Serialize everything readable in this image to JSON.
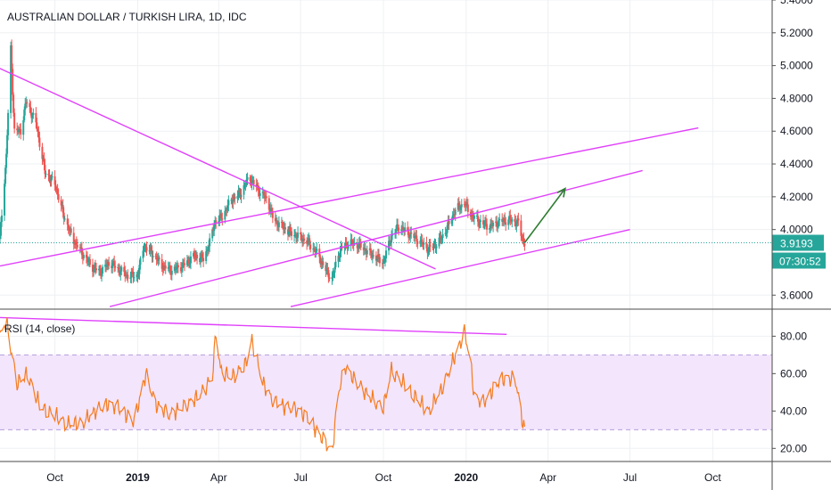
{
  "chart_data": {
    "type": "candlestick",
    "title": "AUSTRALIAN DOLLAR / TURKISH LIRA, 1D, IDC",
    "price_axis": {
      "ylim": [
        3.52,
        5.4
      ],
      "ticks": [
        "5.4000",
        "5.2000",
        "5.0000",
        "4.8000",
        "4.6000",
        "4.4000",
        "4.2000",
        "4.0000",
        "3.6000"
      ]
    },
    "last_price": {
      "label": "3.9193",
      "value": 3.9193,
      "color": "#26a69a"
    },
    "countdown": {
      "label": "07:30:52",
      "color": "#26a69a"
    },
    "x_axis": {
      "start": "2018-08-01",
      "end": "2020-12-06",
      "ticks": [
        {
          "label": "Oct",
          "date": "2018-10-01",
          "bold": false
        },
        {
          "label": "2019",
          "date": "2019-01-01",
          "bold": true
        },
        {
          "label": "Apr",
          "date": "2019-04-01",
          "bold": false
        },
        {
          "label": "Jul",
          "date": "2019-07-01",
          "bold": false
        },
        {
          "label": "Oct",
          "date": "2019-10-01",
          "bold": false
        },
        {
          "label": "2020",
          "date": "2020-01-01",
          "bold": true
        },
        {
          "label": "Apr",
          "date": "2020-04-01",
          "bold": false
        },
        {
          "label": "Jul",
          "date": "2020-07-01",
          "bold": false
        },
        {
          "label": "Oct",
          "date": "2020-10-01",
          "bold": false
        }
      ]
    },
    "price_anchors": [
      [
        "2018-08-01",
        3.95
      ],
      [
        "2018-08-08",
        4.45
      ],
      [
        "2018-08-13",
        5.1
      ],
      [
        "2018-08-17",
        4.6
      ],
      [
        "2018-08-24",
        4.6
      ],
      [
        "2018-08-30",
        4.78
      ],
      [
        "2018-09-10",
        4.65
      ],
      [
        "2018-09-20",
        4.35
      ],
      [
        "2018-10-01",
        4.28
      ],
      [
        "2018-10-10",
        4.1
      ],
      [
        "2018-10-20",
        3.95
      ],
      [
        "2018-11-01",
        3.85
      ],
      [
        "2018-11-10",
        3.78
      ],
      [
        "2018-11-20",
        3.74
      ],
      [
        "2018-12-01",
        3.8
      ],
      [
        "2018-12-10",
        3.76
      ],
      [
        "2018-12-20",
        3.72
      ],
      [
        "2019-01-01",
        3.72
      ],
      [
        "2019-01-08",
        3.9
      ],
      [
        "2019-01-18",
        3.85
      ],
      [
        "2019-01-28",
        3.78
      ],
      [
        "2019-02-08",
        3.75
      ],
      [
        "2019-02-20",
        3.78
      ],
      [
        "2019-03-05",
        3.84
      ],
      [
        "2019-03-15",
        3.82
      ],
      [
        "2019-03-22",
        3.92
      ],
      [
        "2019-03-28",
        4.05
      ],
      [
        "2019-04-05",
        4.08
      ],
      [
        "2019-04-15",
        4.18
      ],
      [
        "2019-04-25",
        4.22
      ],
      [
        "2019-05-05",
        4.32
      ],
      [
        "2019-05-10",
        4.28
      ],
      [
        "2019-05-18",
        4.22
      ],
      [
        "2019-05-25",
        4.18
      ],
      [
        "2019-06-01",
        4.06
      ],
      [
        "2019-06-10",
        4.02
      ],
      [
        "2019-06-20",
        3.98
      ],
      [
        "2019-07-01",
        3.95
      ],
      [
        "2019-07-10",
        3.92
      ],
      [
        "2019-07-20",
        3.85
      ],
      [
        "2019-07-28",
        3.76
      ],
      [
        "2019-08-05",
        3.7
      ],
      [
        "2019-08-12",
        3.85
      ],
      [
        "2019-08-18",
        3.9
      ],
      [
        "2019-08-25",
        3.92
      ],
      [
        "2019-09-05",
        3.9
      ],
      [
        "2019-09-15",
        3.86
      ],
      [
        "2019-09-25",
        3.82
      ],
      [
        "2019-10-01",
        3.8
      ],
      [
        "2019-10-10",
        3.96
      ],
      [
        "2019-10-18",
        4.02
      ],
      [
        "2019-10-28",
        3.98
      ],
      [
        "2019-11-08",
        3.94
      ],
      [
        "2019-11-20",
        3.88
      ],
      [
        "2019-12-01",
        3.92
      ],
      [
        "2019-12-10",
        4.0
      ],
      [
        "2019-12-20",
        4.12
      ],
      [
        "2019-12-30",
        4.16
      ],
      [
        "2020-01-08",
        4.08
      ],
      [
        "2020-01-18",
        4.04
      ],
      [
        "2020-01-28",
        4.02
      ],
      [
        "2020-02-08",
        4.05
      ],
      [
        "2020-02-18",
        4.06
      ],
      [
        "2020-02-28",
        4.04
      ],
      [
        "2020-03-03",
        3.95
      ],
      [
        "2020-03-06",
        3.92
      ]
    ],
    "rsi": {
      "label": "RSI (14, close)",
      "ylim": [
        13,
        94
      ],
      "ticks": [
        "80.00",
        "60.00",
        "40.00",
        "20.00"
      ],
      "band": [
        30,
        70
      ],
      "anchors": [
        [
          "2018-08-01",
          80
        ],
        [
          "2018-08-08",
          88
        ],
        [
          "2018-08-13",
          74
        ],
        [
          "2018-08-20",
          55
        ],
        [
          "2018-09-01",
          60
        ],
        [
          "2018-09-15",
          42
        ],
        [
          "2018-10-01",
          38
        ],
        [
          "2018-10-15",
          33
        ],
        [
          "2018-11-01",
          34
        ],
        [
          "2018-11-15",
          40
        ],
        [
          "2018-12-01",
          44
        ],
        [
          "2018-12-15",
          40
        ],
        [
          "2018-12-28",
          34
        ],
        [
          "2019-01-10",
          60
        ],
        [
          "2019-01-20",
          44
        ],
        [
          "2019-02-05",
          38
        ],
        [
          "2019-02-20",
          42
        ],
        [
          "2019-03-10",
          48
        ],
        [
          "2019-03-25",
          58
        ],
        [
          "2019-03-29",
          83
        ],
        [
          "2019-04-03",
          62
        ],
        [
          "2019-04-15",
          58
        ],
        [
          "2019-05-01",
          65
        ],
        [
          "2019-05-08",
          78
        ],
        [
          "2019-05-20",
          55
        ],
        [
          "2019-06-01",
          45
        ],
        [
          "2019-06-15",
          42
        ],
        [
          "2019-07-01",
          40
        ],
        [
          "2019-07-15",
          32
        ],
        [
          "2019-08-05",
          18
        ],
        [
          "2019-08-12",
          50
        ],
        [
          "2019-08-20",
          64
        ],
        [
          "2019-09-01",
          55
        ],
        [
          "2019-09-15",
          48
        ],
        [
          "2019-10-01",
          42
        ],
        [
          "2019-10-10",
          62
        ],
        [
          "2019-10-20",
          57
        ],
        [
          "2019-11-05",
          48
        ],
        [
          "2019-11-20",
          40
        ],
        [
          "2019-12-05",
          52
        ],
        [
          "2019-12-20",
          70
        ],
        [
          "2019-12-30",
          82
        ],
        [
          "2020-01-05",
          70
        ],
        [
          "2020-01-10",
          48
        ],
        [
          "2020-01-20",
          44
        ],
        [
          "2020-02-05",
          55
        ],
        [
          "2020-02-15",
          58
        ],
        [
          "2020-02-25",
          56
        ],
        [
          "2020-03-03",
          36
        ],
        [
          "2020-03-06",
          30
        ]
      ]
    },
    "drawings": {
      "price_color": "#e040fb",
      "rsi_color": "#e040fb",
      "projection_color": "#2e7d32"
    }
  }
}
